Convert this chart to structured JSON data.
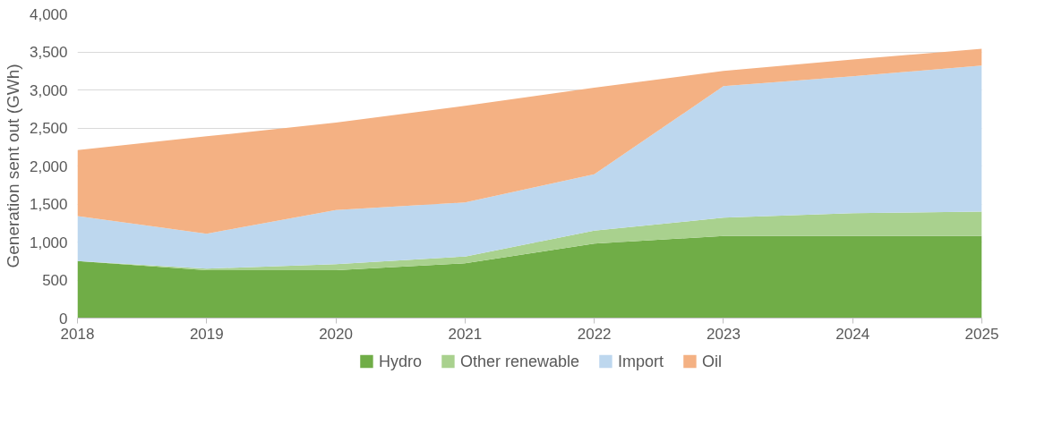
{
  "chart_data": {
    "type": "area",
    "stacked": true,
    "ylabel": "Generation sent out (GWh)",
    "x": [
      2018,
      2019,
      2020,
      2021,
      2022,
      2023,
      2024,
      2025
    ],
    "series": [
      {
        "name": "Hydro",
        "color": "#70ad47",
        "values": [
          750,
          630,
          630,
          720,
          980,
          1080,
          1080,
          1080
        ]
      },
      {
        "name": "Other renewable",
        "color": "#a9d18e",
        "values": [
          0,
          20,
          80,
          90,
          170,
          240,
          300,
          320
        ]
      },
      {
        "name": "Import",
        "color": "#bdd7ee",
        "values": [
          590,
          460,
          710,
          710,
          740,
          1730,
          1800,
          1920
        ]
      },
      {
        "name": "Oil",
        "color": "#f4b183",
        "values": [
          870,
          1280,
          1150,
          1270,
          1140,
          200,
          220,
          220
        ]
      }
    ],
    "xlim": [
      2018,
      2025
    ],
    "xticks": [
      2018,
      2019,
      2020,
      2021,
      2022,
      2023,
      2024,
      2025
    ],
    "ylim": [
      0,
      4000
    ],
    "yticks": [
      {
        "value": 0,
        "label": "0"
      },
      {
        "value": 500,
        "label": "500"
      },
      {
        "value": 1000,
        "label": "1,000"
      },
      {
        "value": 1500,
        "label": "1,500"
      },
      {
        "value": 2000,
        "label": "2,000"
      },
      {
        "value": 2500,
        "label": "2,500"
      },
      {
        "value": 3000,
        "label": "3,000"
      },
      {
        "value": 3500,
        "label": "3,500"
      },
      {
        "value": 4000,
        "label": "4,000"
      }
    ],
    "grid": "y",
    "legend": "bottom"
  }
}
